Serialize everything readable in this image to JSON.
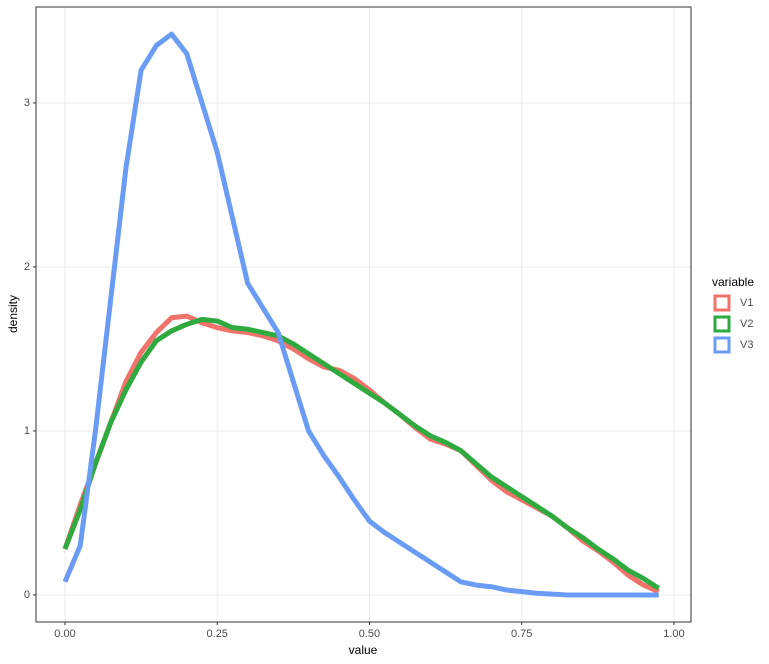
{
  "chart_data": {
    "type": "line",
    "x_label": "value",
    "y_label": "density",
    "x": [
      0,
      0.025,
      0.05,
      0.075,
      0.1,
      0.125,
      0.15,
      0.175,
      0.2,
      0.225,
      0.25,
      0.275,
      0.3,
      0.325,
      0.35,
      0.375,
      0.4,
      0.425,
      0.45,
      0.475,
      0.5,
      0.525,
      0.55,
      0.575,
      0.6,
      0.625,
      0.65,
      0.675,
      0.7,
      0.725,
      0.75,
      0.775,
      0.8,
      0.825,
      0.85,
      0.875,
      0.9,
      0.925,
      0.95,
      0.975
    ],
    "series": [
      {
        "name": "V1",
        "color": "#f0736b",
        "values": [
          0.28,
          0.55,
          0.8,
          1.05,
          1.3,
          1.48,
          1.6,
          1.69,
          1.7,
          1.66,
          1.63,
          1.61,
          1.6,
          1.58,
          1.55,
          1.5,
          1.44,
          1.39,
          1.37,
          1.32,
          1.25,
          1.17,
          1.1,
          1.02,
          0.95,
          0.92,
          0.88,
          0.79,
          0.7,
          0.63,
          0.58,
          0.53,
          0.48,
          0.41,
          0.33,
          0.27,
          0.2,
          0.12,
          0.06,
          0.02
        ]
      },
      {
        "name": "V2",
        "color": "#2eaa3f",
        "values": [
          0.28,
          0.52,
          0.8,
          1.05,
          1.25,
          1.42,
          1.55,
          1.61,
          1.65,
          1.68,
          1.67,
          1.63,
          1.62,
          1.6,
          1.58,
          1.53,
          1.47,
          1.41,
          1.35,
          1.29,
          1.23,
          1.17,
          1.1,
          1.03,
          0.97,
          0.93,
          0.88,
          0.8,
          0.72,
          0.66,
          0.6,
          0.54,
          0.48,
          0.41,
          0.35,
          0.28,
          0.22,
          0.15,
          0.1,
          0.04
        ]
      },
      {
        "name": "V3",
        "color": "#6b9cf5",
        "values": [
          0.08,
          0.3,
          1.0,
          1.8,
          2.6,
          3.2,
          3.35,
          3.42,
          3.3,
          3.0,
          2.7,
          2.3,
          1.9,
          1.75,
          1.6,
          1.3,
          1.0,
          0.85,
          0.72,
          0.58,
          0.45,
          0.38,
          0.32,
          0.26,
          0.2,
          0.14,
          0.08,
          0.06,
          0.05,
          0.03,
          0.02,
          0.01,
          0.005,
          0,
          0,
          0,
          0,
          0,
          0,
          0
        ]
      }
    ],
    "legend_title": "variable",
    "legend": "right",
    "xlim": [
      -0.0476,
      1.028
    ],
    "xticks": [
      {
        "value": 0,
        "label": "0.00"
      },
      {
        "value": 0.25,
        "label": "0.25"
      },
      {
        "value": 0.5,
        "label": "0.50"
      },
      {
        "value": 0.75,
        "label": "0.75"
      },
      {
        "value": 1,
        "label": "1.00"
      }
    ],
    "ylim": [
      -0.165,
      3.585
    ],
    "yticks": [
      0,
      1,
      2,
      3
    ],
    "grid": true
  }
}
